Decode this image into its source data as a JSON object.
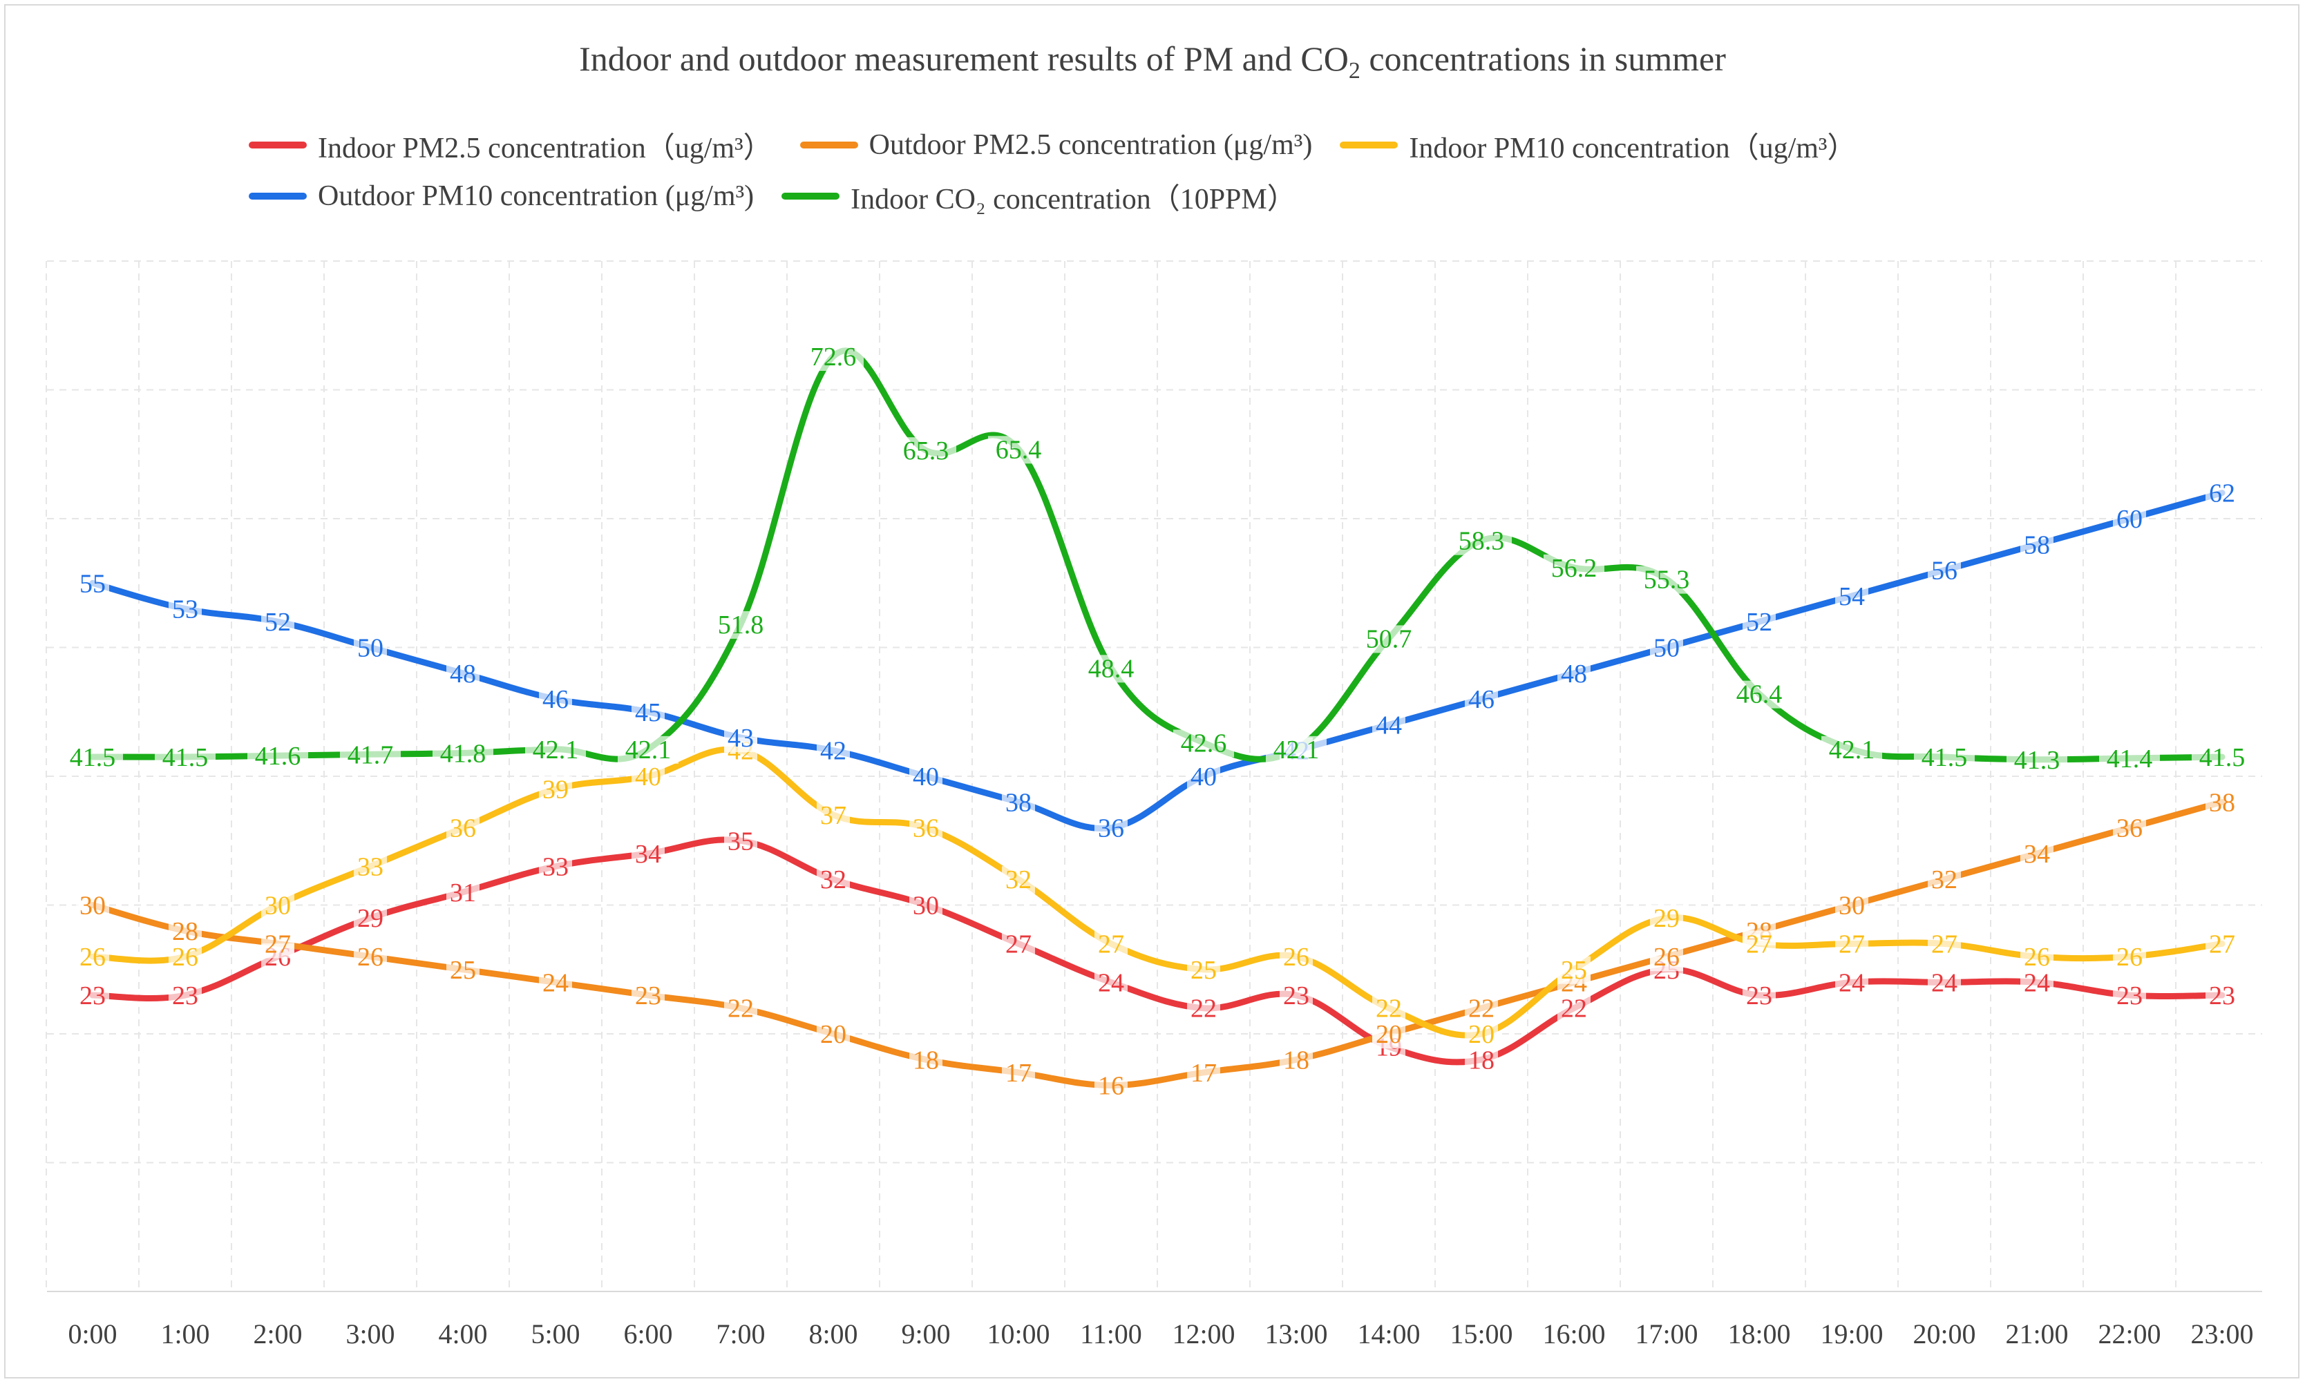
{
  "chart_data": {
    "type": "line",
    "title_main": "Indoor and outdoor measurement results of PM and CO",
    "title_sub": "2",
    "title_tail": " concentrations in summer",
    "x": [
      "0:00",
      "1:00",
      "2:00",
      "3:00",
      "4:00",
      "5:00",
      "6:00",
      "7:00",
      "8:00",
      "9:00",
      "10:00",
      "11:00",
      "12:00",
      "13:00",
      "14:00",
      "15:00",
      "16:00",
      "17:00",
      "18:00",
      "19:00",
      "20:00",
      "21:00",
      "22:00",
      "23:00"
    ],
    "ylim": [
      0,
      80
    ],
    "grid": true,
    "legend_position": "top",
    "series": [
      {
        "name": "Indoor PM2.5 concentration（ug/m³）",
        "color": "#e8383d",
        "values": [
          23,
          23,
          26,
          29,
          31,
          33,
          34,
          35,
          32,
          30,
          27,
          24,
          22,
          23,
          19,
          18,
          22,
          25,
          23,
          24,
          24,
          24,
          23,
          23
        ],
        "labels": [
          "23",
          "23",
          "26",
          "29",
          "31",
          "33",
          "34",
          "35",
          "32",
          "30",
          "27",
          "24",
          "22",
          "23",
          "19",
          "18",
          "22",
          "25",
          "23",
          "24",
          "24",
          "24",
          "23",
          "23"
        ]
      },
      {
        "name": "Outdoor PM2.5 concentration (μg/m³)",
        "color": "#f28a1c",
        "values": [
          30,
          28,
          27,
          26,
          25,
          24,
          23,
          22,
          20,
          18,
          17,
          16,
          17,
          18,
          20,
          22,
          24,
          26,
          28,
          30,
          32,
          34,
          36,
          38
        ],
        "labels": [
          "30",
          "28",
          "27",
          "26",
          "25",
          "24",
          "23",
          "22",
          "20",
          "18",
          "17",
          "16",
          "17",
          "18",
          "20",
          "22",
          "24",
          "26",
          "28",
          "30",
          "32",
          "34",
          "36",
          "38"
        ]
      },
      {
        "name": "Indoor PM10 concentration（ug/m³）",
        "color": "#fbbd16",
        "values": [
          26,
          26,
          30,
          33,
          36,
          39,
          40,
          42,
          37,
          36,
          32,
          27,
          25,
          26,
          22,
          20,
          25,
          29,
          27,
          27,
          27,
          26,
          26,
          27
        ],
        "labels": [
          "26",
          "26",
          "30",
          "33",
          "36",
          "39",
          "40",
          "42",
          "37",
          "36",
          "32",
          "27",
          "25",
          "26",
          "22",
          "20",
          "25",
          "29",
          "27",
          "27",
          "27",
          "26",
          "26",
          "27"
        ]
      },
      {
        "name": "Outdoor PM10 concentration (μg/m³)",
        "color": "#1f6fe5",
        "values": [
          55,
          53,
          52,
          50,
          48,
          46,
          45,
          43,
          42,
          40,
          38,
          36,
          40,
          42,
          44,
          46,
          48,
          50,
          52,
          54,
          56,
          58,
          60,
          62
        ],
        "labels": [
          "55",
          "53",
          "52",
          "50",
          "48",
          "46",
          "45",
          "43",
          "42",
          "40",
          "38",
          "36",
          "40",
          "42",
          "44",
          "46",
          "48",
          "50",
          "52",
          "54",
          "56",
          "58",
          "60",
          "62"
        ]
      },
      {
        "name": "Indoor CO₂ concentration（10PPM）",
        "color": "#1aad19",
        "values": [
          41.5,
          41.5,
          41.6,
          41.7,
          41.8,
          42.1,
          42.1,
          51.8,
          72.6,
          65.3,
          65.4,
          48.4,
          42.6,
          42.1,
          50.7,
          58.3,
          56.2,
          55.3,
          46.4,
          42.1,
          41.5,
          41.3,
          41.4,
          41.5
        ],
        "labels": [
          "41.5",
          "41.5",
          "41.6",
          "41.7",
          "41.8",
          "42.1",
          "42.1",
          "51.8",
          "72.6",
          "65.3",
          "65.4",
          "48.4",
          "42.6",
          "42.1",
          "50.7",
          "58.3",
          "56.2",
          "55.3",
          "46.4",
          "42.1",
          "41.5",
          "41.3",
          "41.4",
          "41.5"
        ]
      }
    ]
  }
}
